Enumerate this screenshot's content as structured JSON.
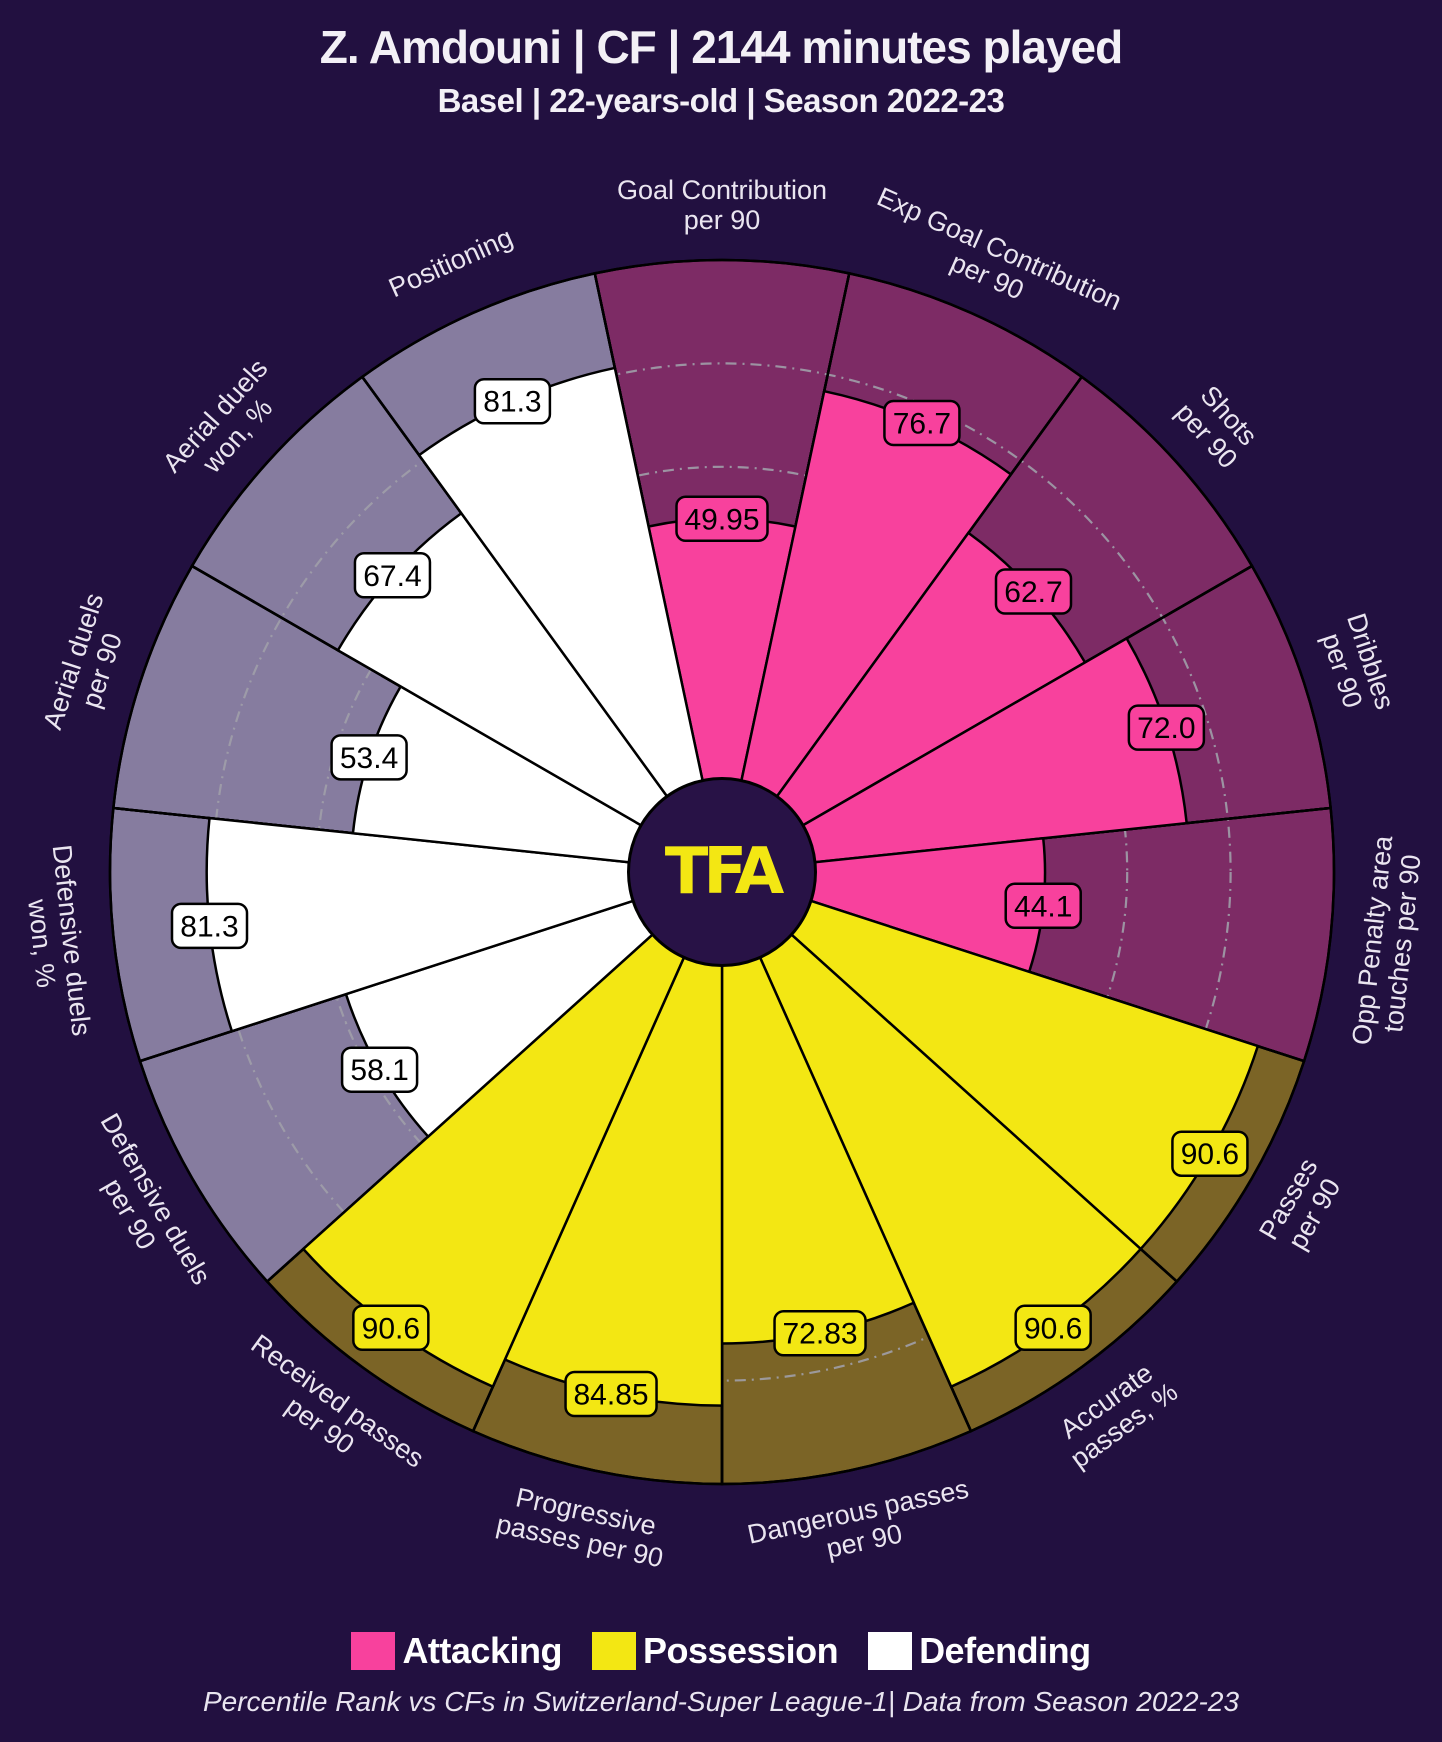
{
  "header": {
    "title": "Z. Amdouni | CF | 2144 minutes played",
    "subtitle": "Basel | 22-years-old | Season 2022-23"
  },
  "logo": {
    "text": "TFA"
  },
  "legend": {
    "items": [
      {
        "label": "Attacking",
        "group": "attacking"
      },
      {
        "label": "Possession",
        "group": "possession"
      },
      {
        "label": "Defending",
        "group": "defending"
      }
    ]
  },
  "footer": {
    "note": "Percentile Rank vs CFs in Switzerland-Super League-1| Data from Season 2022-23"
  },
  "colors": {
    "page_background": "#221040",
    "attacking": "#f8419d",
    "attacking_background": "#7d2b65",
    "possession": "#f3e713",
    "possession_background": "#7b6426",
    "defending": "#ffffff",
    "defending_background": "#867c9f",
    "gridline": "#a09ea8",
    "slice_outline": "#000000",
    "value_text": "#000000",
    "logo_background": "#281246",
    "logo_text": "#f3e713",
    "axis_label_text": "#eae5f0"
  },
  "chart_data": {
    "type": "pizza",
    "description": "Percentile rank pizza chart: 15 radial slices of 24 degrees, percentile scale 0-100, dashed gridlines every 20, first slice centered at top, slices listed clockwise",
    "scale": {
      "min": 0,
      "max": 100,
      "gridlines": [
        20,
        40,
        60,
        80
      ]
    },
    "groups": {
      "attacking": {
        "name": "Attacking"
      },
      "possession": {
        "name": "Possession"
      },
      "defending": {
        "name": "Defending"
      }
    },
    "slices": [
      {
        "label": "Goal Contribution per 90",
        "lines": [
          "Goal Contribution",
          "per 90"
        ],
        "value": 49.95,
        "display": "49.95",
        "group": "attacking"
      },
      {
        "label": "Exp Goal Contribution per 90",
        "lines": [
          "Exp Goal Contribution",
          "per 90"
        ],
        "value": 76.7,
        "display": "76.7",
        "group": "attacking"
      },
      {
        "label": "Shots per 90",
        "lines": [
          "Shots",
          "per 90"
        ],
        "value": 62.7,
        "display": "62.7",
        "group": "attacking"
      },
      {
        "label": "Dribbles per 90",
        "lines": [
          "Dribbles",
          "per 90"
        ],
        "value": 72.0,
        "display": "72.0",
        "group": "attacking"
      },
      {
        "label": "Opp Penalty area touches per 90",
        "lines": [
          "Opp Penalty area",
          "touches per 90"
        ],
        "value": 44.1,
        "display": "44.1",
        "group": "attacking"
      },
      {
        "label": "Passes per 90",
        "lines": [
          "Passes",
          "per 90"
        ],
        "value": 90.6,
        "display": "90.6",
        "group": "possession"
      },
      {
        "label": "Accurate passes, %",
        "lines": [
          "Accurate",
          "passes, %"
        ],
        "value": 90.6,
        "display": "90.6",
        "group": "possession"
      },
      {
        "label": "Dangerous passes per 90",
        "lines": [
          "Dangerous passes",
          "per 90"
        ],
        "value": 72.83,
        "display": "72.83",
        "group": "possession"
      },
      {
        "label": "Progressive passes per 90",
        "lines": [
          "Progressive",
          "passes per 90"
        ],
        "value": 84.85,
        "display": "84.85",
        "group": "possession"
      },
      {
        "label": "Received passes per 90",
        "lines": [
          "Received passes",
          "per 90"
        ],
        "value": 90.6,
        "display": "90.6",
        "group": "possession"
      },
      {
        "label": "Defensive duels per 90",
        "lines": [
          "Defensive duels",
          "per 90"
        ],
        "value": 58.1,
        "display": "58.1",
        "group": "defending"
      },
      {
        "label": "Defensive duels won, %",
        "lines": [
          "Defensive duels",
          "won, %"
        ],
        "value": 81.3,
        "display": "81.3",
        "group": "defending"
      },
      {
        "label": "Aerial duels per 90",
        "lines": [
          "Aerial duels",
          "per 90"
        ],
        "value": 53.4,
        "display": "53.4",
        "group": "defending"
      },
      {
        "label": "Aerial duels won, %",
        "lines": [
          "Aerial duels",
          "won, %"
        ],
        "value": 67.4,
        "display": "67.4",
        "group": "defending"
      },
      {
        "label": "Positioning",
        "lines": [
          "Positioning"
        ],
        "value": 81.3,
        "display": "81.3",
        "group": "defending"
      }
    ]
  }
}
